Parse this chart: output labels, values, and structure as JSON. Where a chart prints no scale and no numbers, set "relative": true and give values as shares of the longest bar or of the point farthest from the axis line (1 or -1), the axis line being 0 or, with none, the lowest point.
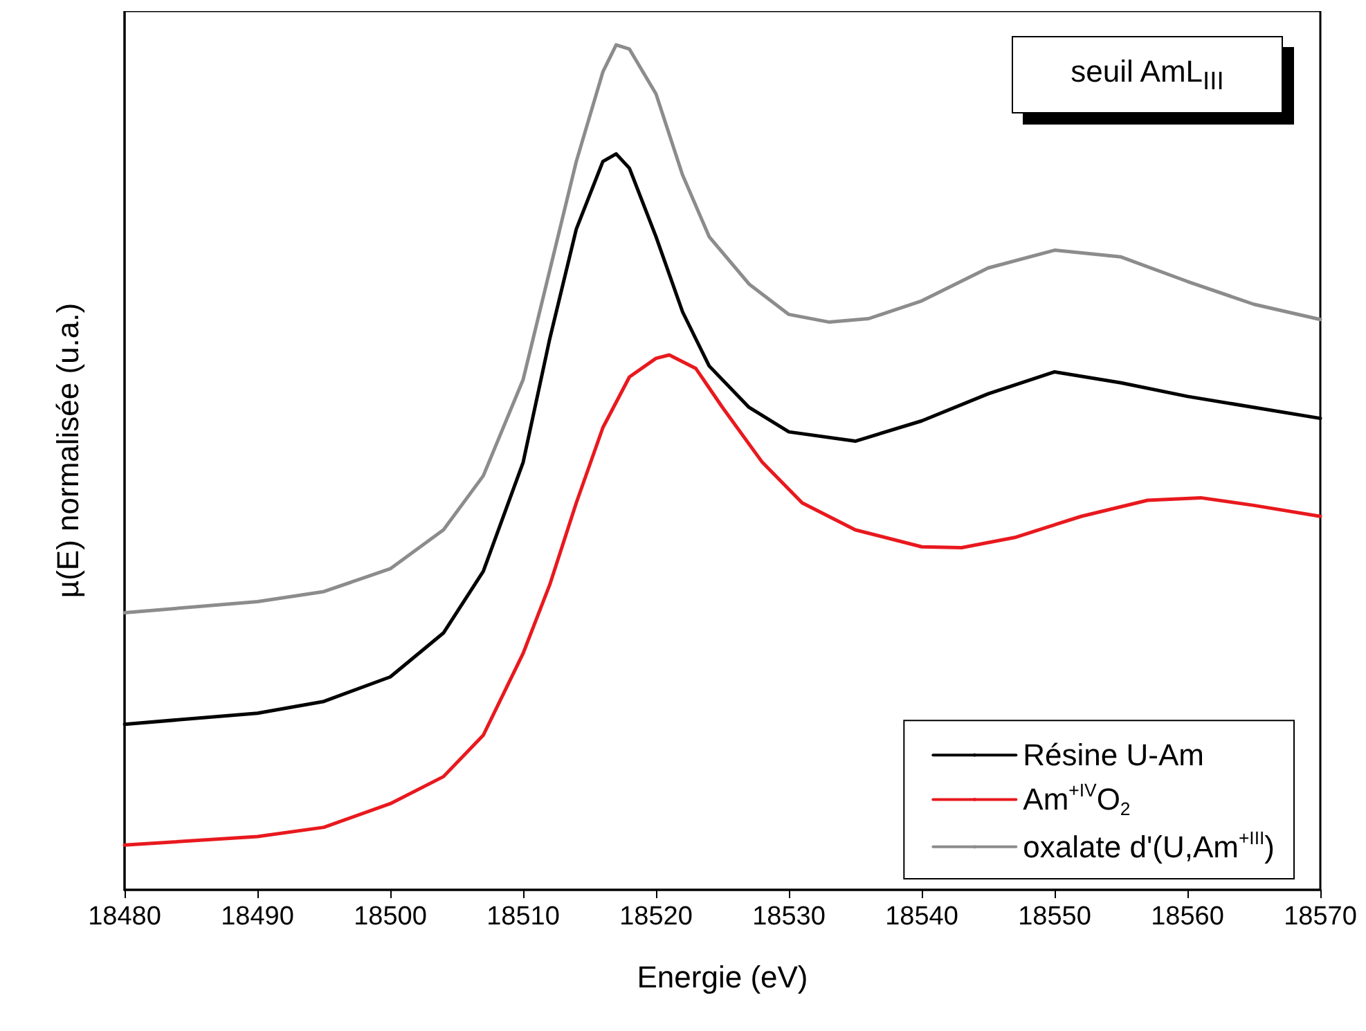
{
  "chart_data": {
    "type": "line",
    "relative": true,
    "xlabel": "Energie (eV)",
    "ylabel": "µ(E) normalisée (u.a.)",
    "annotations": [
      "seuil AmL$_{III}$"
    ],
    "xlim": [
      18480,
      18570
    ],
    "xticks": [
      18480,
      18490,
      18500,
      18510,
      18520,
      18530,
      18540,
      18550,
      18560,
      18570
    ],
    "grid": false,
    "legend": "bottom right",
    "marker": "none",
    "line_style": "solid",
    "tick_labels": "x",
    "x": [
      18480,
      18490,
      18495,
      18500,
      18504,
      18507,
      18510,
      18512,
      18514,
      18516,
      18517,
      18518,
      18520,
      18522,
      18524,
      18527,
      18530,
      18535,
      18540,
      18545,
      18550,
      18555,
      18560,
      18565,
      18570
    ],
    "series": [
      {
        "name": "Résine U-Am",
        "color": "#000000",
        "values": [
          0.196,
          0.209,
          0.223,
          0.252,
          0.304,
          0.377,
          0.506,
          0.652,
          0.782,
          0.862,
          0.871,
          0.854,
          0.773,
          0.684,
          0.62,
          0.571,
          0.542,
          0.531,
          0.555,
          0.587,
          0.613,
          0.6,
          0.584,
          0.571,
          0.558
        ]
      },
      {
        "name": "Am$^{+IV}$O$_{2}$",
        "color": "#e8191e",
        "x": [
          18480,
          18490,
          18495,
          18500,
          18504,
          18507,
          18510,
          18512,
          18514,
          18516,
          18518,
          18520,
          18521,
          18523,
          18525,
          18528,
          18531,
          18535,
          18540,
          18543,
          18547,
          18552,
          18557,
          18561,
          18565,
          18570
        ],
        "values": [
          0.053,
          0.063,
          0.074,
          0.102,
          0.134,
          0.183,
          0.28,
          0.361,
          0.458,
          0.547,
          0.607,
          0.629,
          0.633,
          0.617,
          0.571,
          0.506,
          0.458,
          0.426,
          0.406,
          0.405,
          0.417,
          0.442,
          0.461,
          0.464,
          0.455,
          0.442
        ]
      },
      {
        "name": "oxalate d'(U,Am$^{+III}$)",
        "color": "#8c8c8c",
        "x": [
          18480,
          18490,
          18495,
          18500,
          18504,
          18507,
          18510,
          18512,
          18514,
          18516,
          18517,
          18518,
          18520,
          18522,
          18524,
          18527,
          18530,
          18533,
          18536,
          18540,
          18545,
          18550,
          18555,
          18560,
          18565,
          18570
        ],
        "values": [
          0.328,
          0.341,
          0.353,
          0.38,
          0.426,
          0.49,
          0.604,
          0.733,
          0.862,
          0.968,
          1.0,
          0.995,
          0.942,
          0.846,
          0.773,
          0.717,
          0.681,
          0.672,
          0.676,
          0.697,
          0.736,
          0.757,
          0.749,
          0.72,
          0.693,
          0.675
        ]
      }
    ]
  }
}
